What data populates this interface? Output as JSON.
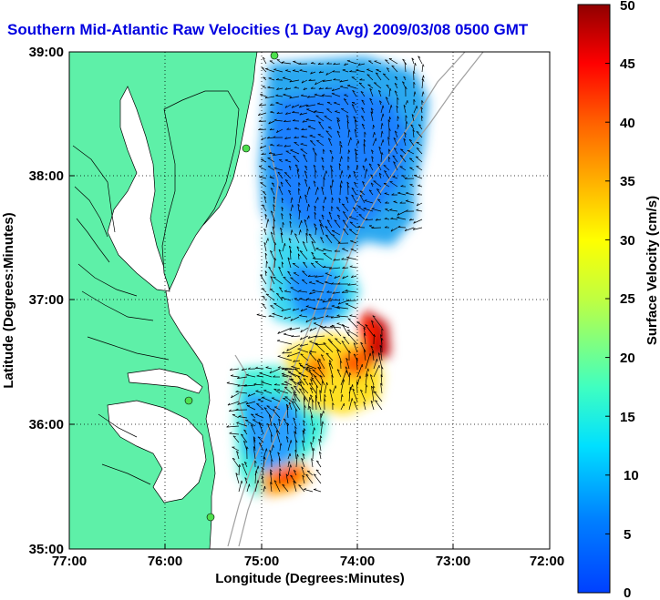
{
  "title": "Southern Mid-Atlantic Raw Velocities (1 Day Avg) 2009/03/08 0500 GMT",
  "x_axis": {
    "label": "Longitude (Degrees:Minutes)",
    "ticks": [
      "77:00",
      "76:00",
      "75:00",
      "74:00",
      "73:00",
      "72:00"
    ]
  },
  "y_axis": {
    "label": "Latitude (Degrees:Minutes)",
    "ticks": [
      "39:00",
      "38:00",
      "37:00",
      "36:00",
      "35:00"
    ]
  },
  "colorbar": {
    "label": "Surface Velocity (cm/s)",
    "ticks": [
      "50",
      "45",
      "40",
      "35",
      "30",
      "25",
      "20",
      "15",
      "10",
      "5",
      "0"
    ],
    "min": 0,
    "max": 50,
    "colormap": "jet"
  },
  "colors": {
    "title": "#0000e0",
    "land": "#5ef0a8",
    "coast_line": "#000000",
    "bathymetry": "#a0a0a0",
    "site_marker": "#4ee04e",
    "grid": "#000000"
  },
  "map": {
    "lon_range": [
      -77,
      -72
    ],
    "lat_range": [
      35,
      39
    ],
    "grid": "dotted",
    "sites": [
      "site-1",
      "site-2",
      "site-3",
      "site-4"
    ]
  }
}
